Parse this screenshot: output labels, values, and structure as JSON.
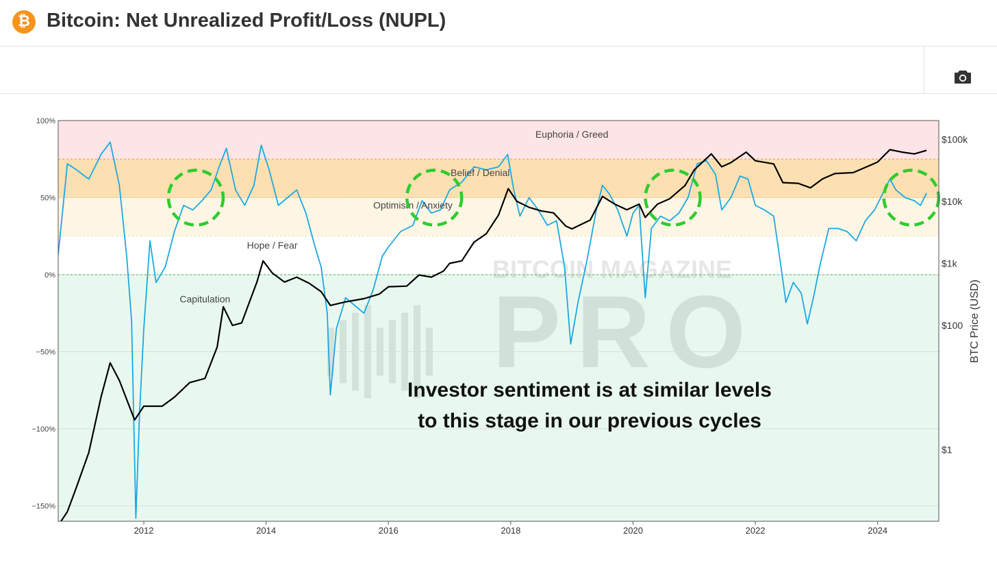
{
  "header": {
    "logo_symbol": "₿",
    "logo_icon": "bitcoin-icon",
    "title": "Bitcoin: Net Unrealized Profit/Loss (NUPL)"
  },
  "toolbar": {
    "camera_icon": "camera-icon"
  },
  "chart_data": {
    "type": "line",
    "title": "",
    "xlabel": "",
    "ylabel_left": "",
    "ylabel_right": "BTC Price (USD)",
    "xlim": [
      2010.6,
      2025.0
    ],
    "ylim_left": [
      -1.6,
      1.0
    ],
    "ylim_right_log": [
      0.07,
      200000
    ],
    "x_ticks": [
      {
        "value": 2012,
        "label": "2012"
      },
      {
        "value": 2014,
        "label": "2014"
      },
      {
        "value": 2016,
        "label": "2016"
      },
      {
        "value": 2018,
        "label": "2018"
      },
      {
        "value": 2020,
        "label": "2020"
      },
      {
        "value": 2022,
        "label": "2022"
      },
      {
        "value": 2024,
        "label": "2024"
      }
    ],
    "y_left_ticks": [
      {
        "value": 1.0,
        "label": "100%"
      },
      {
        "value": 0.5,
        "label": "50%"
      },
      {
        "value": 0.0,
        "label": "0%"
      },
      {
        "value": -0.5,
        "label": "−50%"
      },
      {
        "value": -1.0,
        "label": "−100%"
      },
      {
        "value": -1.5,
        "label": "−150%"
      }
    ],
    "y_right_ticks": [
      {
        "value": 100000,
        "label": "$100k"
      },
      {
        "value": 10000,
        "label": "$10k"
      },
      {
        "value": 1000,
        "label": "$1k"
      },
      {
        "value": 100,
        "label": "$100"
      },
      {
        "value": 1,
        "label": "$1"
      }
    ],
    "zones": [
      {
        "name": "Euphoria / Greed",
        "from": 0.75,
        "to": 1.0,
        "color": "#fde4e6"
      },
      {
        "name": "Belief / Denial",
        "from": 0.5,
        "to": 0.75,
        "color": "#fde0b2"
      },
      {
        "name": "Optimism / Anxiety",
        "from": 0.25,
        "to": 0.5,
        "color": "#fef6e4"
      },
      {
        "name": "Hope / Fear",
        "from": 0.0,
        "to": 0.25,
        "color": "#ffffff"
      },
      {
        "name": "Capitulation",
        "from": -1.6,
        "to": 0.0,
        "color": "#e8f8ef"
      }
    ],
    "zone_labels": [
      {
        "text": "Euphoria / Greed",
        "x": 2019.0,
        "y": 0.89
      },
      {
        "text": "Belief / Denial",
        "x": 2017.5,
        "y": 0.64
      },
      {
        "text": "Optimism / Anxiety",
        "x": 2016.4,
        "y": 0.43
      },
      {
        "text": "Hope / Fear",
        "x": 2014.1,
        "y": 0.17
      },
      {
        "text": "Capitulation",
        "x": 2013.0,
        "y": -0.18
      }
    ],
    "watermark": [
      "BITCOIN MAGAZINE",
      "PRO"
    ],
    "annotation": [
      "Investor sentiment is at similar levels",
      "to this stage in our previous cycles"
    ],
    "highlights": [
      {
        "x": 2012.85,
        "y": 0.5
      },
      {
        "x": 2016.75,
        "y": 0.5
      },
      {
        "x": 2020.65,
        "y": 0.5
      },
      {
        "x": 2024.55,
        "y": 0.5
      }
    ],
    "series": [
      {
        "name": "NUPL",
        "color": "#1ba8e2",
        "points": [
          [
            2010.6,
            0.13
          ],
          [
            2010.75,
            0.72
          ],
          [
            2010.9,
            0.68
          ],
          [
            2011.1,
            0.62
          ],
          [
            2011.3,
            0.78
          ],
          [
            2011.45,
            0.86
          ],
          [
            2011.6,
            0.58
          ],
          [
            2011.72,
            0.12
          ],
          [
            2011.8,
            -0.3
          ],
          [
            2011.87,
            -1.58
          ],
          [
            2011.93,
            -0.9
          ],
          [
            2012.0,
            -0.35
          ],
          [
            2012.1,
            0.22
          ],
          [
            2012.2,
            -0.05
          ],
          [
            2012.35,
            0.05
          ],
          [
            2012.5,
            0.28
          ],
          [
            2012.65,
            0.45
          ],
          [
            2012.8,
            0.42
          ],
          [
            2012.95,
            0.48
          ],
          [
            2013.1,
            0.55
          ],
          [
            2013.25,
            0.72
          ],
          [
            2013.35,
            0.82
          ],
          [
            2013.5,
            0.55
          ],
          [
            2013.65,
            0.45
          ],
          [
            2013.8,
            0.58
          ],
          [
            2013.92,
            0.84
          ],
          [
            2014.05,
            0.68
          ],
          [
            2014.2,
            0.45
          ],
          [
            2014.35,
            0.5
          ],
          [
            2014.5,
            0.55
          ],
          [
            2014.65,
            0.4
          ],
          [
            2014.8,
            0.18
          ],
          [
            2014.9,
            0.05
          ],
          [
            2015.0,
            -0.25
          ],
          [
            2015.05,
            -0.78
          ],
          [
            2015.15,
            -0.35
          ],
          [
            2015.3,
            -0.15
          ],
          [
            2015.45,
            -0.2
          ],
          [
            2015.6,
            -0.25
          ],
          [
            2015.75,
            -0.1
          ],
          [
            2015.9,
            0.12
          ],
          [
            2016.0,
            0.18
          ],
          [
            2016.2,
            0.28
          ],
          [
            2016.4,
            0.32
          ],
          [
            2016.55,
            0.48
          ],
          [
            2016.7,
            0.4
          ],
          [
            2016.85,
            0.42
          ],
          [
            2017.0,
            0.55
          ],
          [
            2017.2,
            0.6
          ],
          [
            2017.4,
            0.7
          ],
          [
            2017.6,
            0.68
          ],
          [
            2017.8,
            0.7
          ],
          [
            2017.95,
            0.78
          ],
          [
            2018.05,
            0.55
          ],
          [
            2018.15,
            0.38
          ],
          [
            2018.3,
            0.5
          ],
          [
            2018.45,
            0.42
          ],
          [
            2018.6,
            0.32
          ],
          [
            2018.75,
            0.35
          ],
          [
            2018.88,
            0.05
          ],
          [
            2018.98,
            -0.45
          ],
          [
            2019.1,
            -0.18
          ],
          [
            2019.25,
            0.1
          ],
          [
            2019.4,
            0.42
          ],
          [
            2019.5,
            0.58
          ],
          [
            2019.62,
            0.52
          ],
          [
            2019.75,
            0.42
          ],
          [
            2019.9,
            0.25
          ],
          [
            2020.0,
            0.4
          ],
          [
            2020.1,
            0.45
          ],
          [
            2020.2,
            -0.15
          ],
          [
            2020.3,
            0.3
          ],
          [
            2020.45,
            0.38
          ],
          [
            2020.6,
            0.35
          ],
          [
            2020.75,
            0.4
          ],
          [
            2020.9,
            0.5
          ],
          [
            2021.05,
            0.72
          ],
          [
            2021.2,
            0.74
          ],
          [
            2021.35,
            0.65
          ],
          [
            2021.45,
            0.42
          ],
          [
            2021.6,
            0.5
          ],
          [
            2021.75,
            0.64
          ],
          [
            2021.88,
            0.62
          ],
          [
            2022.0,
            0.45
          ],
          [
            2022.15,
            0.42
          ],
          [
            2022.3,
            0.38
          ],
          [
            2022.42,
            0.05
          ],
          [
            2022.5,
            -0.18
          ],
          [
            2022.62,
            -0.05
          ],
          [
            2022.75,
            -0.12
          ],
          [
            2022.85,
            -0.32
          ],
          [
            2022.95,
            -0.15
          ],
          [
            2023.05,
            0.05
          ],
          [
            2023.2,
            0.3
          ],
          [
            2023.35,
            0.3
          ],
          [
            2023.5,
            0.28
          ],
          [
            2023.65,
            0.22
          ],
          [
            2023.8,
            0.35
          ],
          [
            2023.95,
            0.42
          ],
          [
            2024.05,
            0.5
          ],
          [
            2024.2,
            0.62
          ],
          [
            2024.3,
            0.55
          ],
          [
            2024.45,
            0.5
          ],
          [
            2024.6,
            0.48
          ],
          [
            2024.7,
            0.45
          ],
          [
            2024.8,
            0.53
          ]
        ]
      },
      {
        "name": "BTC Price",
        "color": "#000000",
        "axis": "right",
        "points": [
          [
            2010.6,
            0.06
          ],
          [
            2010.75,
            0.1
          ],
          [
            2010.9,
            0.25
          ],
          [
            2011.1,
            0.9
          ],
          [
            2011.3,
            7
          ],
          [
            2011.45,
            25
          ],
          [
            2011.6,
            13
          ],
          [
            2011.85,
            3
          ],
          [
            2012.0,
            5
          ],
          [
            2012.3,
            5
          ],
          [
            2012.5,
            7
          ],
          [
            2012.75,
            12
          ],
          [
            2013.0,
            14
          ],
          [
            2013.2,
            45
          ],
          [
            2013.3,
            200
          ],
          [
            2013.45,
            100
          ],
          [
            2013.6,
            110
          ],
          [
            2013.85,
            500
          ],
          [
            2013.95,
            1100
          ],
          [
            2014.1,
            700
          ],
          [
            2014.3,
            500
          ],
          [
            2014.5,
            600
          ],
          [
            2014.7,
            480
          ],
          [
            2014.9,
            350
          ],
          [
            2015.05,
            210
          ],
          [
            2015.3,
            240
          ],
          [
            2015.6,
            270
          ],
          [
            2015.85,
            320
          ],
          [
            2016.0,
            420
          ],
          [
            2016.3,
            430
          ],
          [
            2016.5,
            650
          ],
          [
            2016.7,
            600
          ],
          [
            2016.9,
            750
          ],
          [
            2017.0,
            1000
          ],
          [
            2017.2,
            1100
          ],
          [
            2017.4,
            2200
          ],
          [
            2017.6,
            3000
          ],
          [
            2017.8,
            6000
          ],
          [
            2017.96,
            16000
          ],
          [
            2018.1,
            10000
          ],
          [
            2018.3,
            8000
          ],
          [
            2018.5,
            7000
          ],
          [
            2018.7,
            6500
          ],
          [
            2018.9,
            4000
          ],
          [
            2019.0,
            3600
          ],
          [
            2019.3,
            5000
          ],
          [
            2019.5,
            12000
          ],
          [
            2019.7,
            9000
          ],
          [
            2019.9,
            7300
          ],
          [
            2020.1,
            9000
          ],
          [
            2020.2,
            5500
          ],
          [
            2020.4,
            9000
          ],
          [
            2020.6,
            11000
          ],
          [
            2020.85,
            18000
          ],
          [
            2021.0,
            32000
          ],
          [
            2021.28,
            58000
          ],
          [
            2021.45,
            36000
          ],
          [
            2021.6,
            42000
          ],
          [
            2021.85,
            62000
          ],
          [
            2022.0,
            45000
          ],
          [
            2022.3,
            40000
          ],
          [
            2022.45,
            20000
          ],
          [
            2022.7,
            19500
          ],
          [
            2022.9,
            16500
          ],
          [
            2023.1,
            23000
          ],
          [
            2023.3,
            28000
          ],
          [
            2023.6,
            29000
          ],
          [
            2023.85,
            37000
          ],
          [
            2024.0,
            43000
          ],
          [
            2024.2,
            68000
          ],
          [
            2024.4,
            62000
          ],
          [
            2024.6,
            58000
          ],
          [
            2024.8,
            66000
          ]
        ]
      }
    ]
  }
}
